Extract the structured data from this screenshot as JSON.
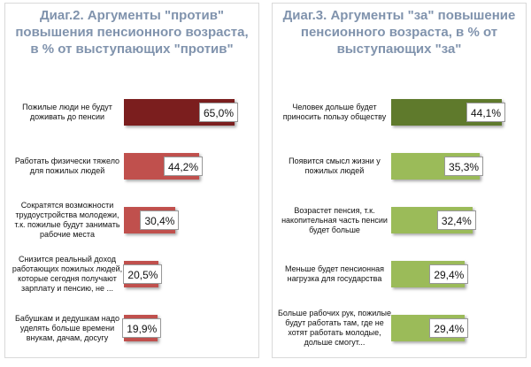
{
  "chart_data": [
    {
      "type": "bar",
      "orientation": "horizontal",
      "title": "Диаг.2. Аргументы \"против\" повышения пенсионного возраста, в % от выступающих \"против\"",
      "categories": [
        "Пожилые люди не будут доживать до пенсии",
        "Работать физически тяжело для пожилых людей",
        "Сократятся возможности трудоустройства молодежи, т.к. пожилые будут занимать рабочие места",
        "Снизится реальный доход работающих пожилых людей, которые сегодня получают зарплату и пенсию, не ...",
        "Бабушкам и дедушкам надо уделять больше времени внукам, дачам, досугу"
      ],
      "values": [
        65.0,
        44.2,
        30.4,
        20.5,
        19.9
      ],
      "value_labels": [
        "65,0%",
        "44,2%",
        "30,4%",
        "20,5%",
        "19,9%"
      ],
      "colors": [
        "#7b1e1e",
        "#c0504d",
        "#c0504d",
        "#c0504d",
        "#c0504d"
      ]
    },
    {
      "type": "bar",
      "orientation": "horizontal",
      "title": "Диаг.3. Аргументы \"за\" повышение пенсионного возраста, в % от выступающих \"за\"",
      "categories": [
        "Человек дольше будет приносить пользу обществу",
        "Появится смысл жизни у пожилых людей",
        "Возрастет пенсия, т.к. накопительная часть пенсии будет больше",
        "Меньше будет пенсионная нагрузка для государства",
        "Больше рабочих рук, пожилые будут работать там, где не хотят работать молодые, дольше смогут..."
      ],
      "values": [
        44.1,
        35.3,
        32.4,
        29.4,
        29.4
      ],
      "value_labels": [
        "44,1%",
        "35,3%",
        "32,4%",
        "29,4%",
        "29,4%"
      ],
      "colors": [
        "#5f7a2c",
        "#9bbb59",
        "#9bbb59",
        "#9bbb59",
        "#9bbb59"
      ]
    }
  ]
}
